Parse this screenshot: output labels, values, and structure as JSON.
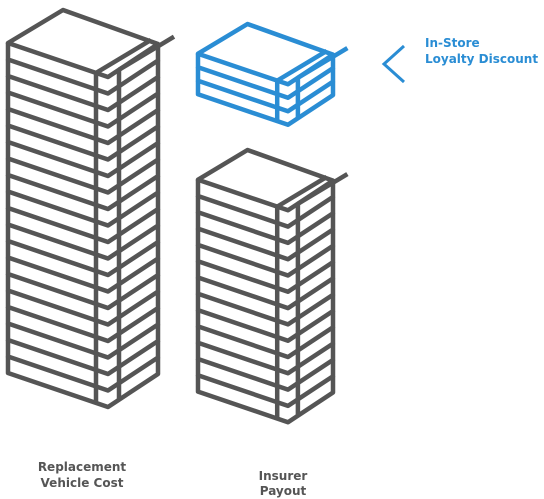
{
  "labels": {
    "replacement": [
      "Replacement",
      "Vehicle Cost"
    ],
    "insurer": [
      "Insurer",
      "Payout"
    ],
    "discount": [
      "In-Store",
      "Loyalty Discount"
    ]
  }
}
